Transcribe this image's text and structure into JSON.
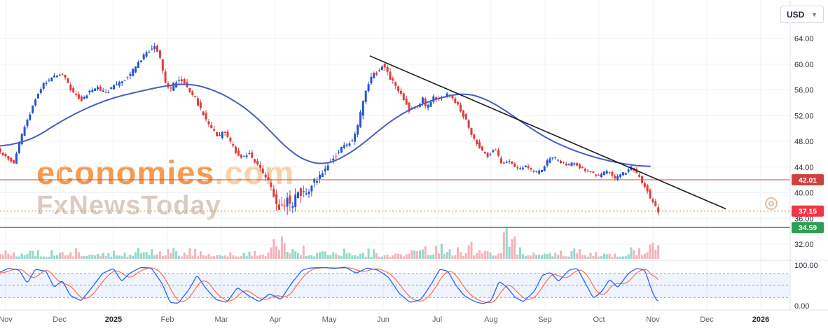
{
  "header": {
    "currency_button": {
      "label": "USD",
      "chevron_icon": "▼"
    }
  },
  "watermark": {
    "brand": "economies",
    "brand_suffix": ".com",
    "subbrand": "FxNewsToday"
  },
  "colors": {
    "candle_up": "#2356cf",
    "candle_down": "#e23b3b",
    "volume_up": "#93d8cb",
    "volume_down": "#f3b3ba",
    "ma_line": "#4b5cc4",
    "trend_line": "#1c1c1c",
    "stoch_k": "#2962ff",
    "stoch_d": "#ff7043",
    "band_fill": "rgba(33,102,245,0.08)",
    "band_line": "#7e97e6",
    "grid": "#eef0f3",
    "axis_border": "#dde0e6",
    "axis_text": "#2a2e39",
    "time_text": "#5d616b"
  },
  "levels": [
    {
      "label": "42.01",
      "price": 42.01,
      "line_color": "#cc4444",
      "bg": "#cf4040",
      "style": "solid",
      "width": 1
    },
    {
      "label": "37.15",
      "price": 37.15,
      "line_color": "#c8860a",
      "bg": "#f23645",
      "style": "dotted",
      "width": 1
    },
    {
      "label": "34.59",
      "price": 34.59,
      "line_color": "#2f9e55",
      "bg": "#2f9e55",
      "style": "solid",
      "width": 1.5
    }
  ],
  "price_axis": {
    "ticks": [
      "64.00",
      "60.00",
      "56.00",
      "52.00",
      "48.00",
      "44.00",
      "40.00",
      "36.00",
      "32.00"
    ],
    "tick_values": [
      64,
      60,
      56,
      52,
      48,
      44,
      40,
      36,
      32
    ]
  },
  "osc_axis": {
    "ticks": [
      "100.00",
      "0.00"
    ],
    "tick_values": [
      100,
      0
    ]
  },
  "time_axis": {
    "labels": [
      {
        "text": "Nov",
        "t": 0,
        "bold": false
      },
      {
        "text": "Dec",
        "t": 1,
        "bold": false
      },
      {
        "text": "2025",
        "t": 2,
        "bold": true
      },
      {
        "text": "Feb",
        "t": 3,
        "bold": false
      },
      {
        "text": "Mar",
        "t": 4,
        "bold": false
      },
      {
        "text": "Apr",
        "t": 5,
        "bold": false
      },
      {
        "text": "May",
        "t": 6,
        "bold": false
      },
      {
        "text": "Jun",
        "t": 7,
        "bold": false
      },
      {
        "text": "Jul",
        "t": 8,
        "bold": false
      },
      {
        "text": "Aug",
        "t": 9,
        "bold": false
      },
      {
        "text": "Sep",
        "t": 10,
        "bold": false
      },
      {
        "text": "Oct",
        "t": 11,
        "bold": false
      },
      {
        "text": "Nov",
        "t": 12,
        "bold": false
      },
      {
        "text": "Dec",
        "t": 13,
        "bold": false
      },
      {
        "text": "2026",
        "t": 14,
        "bold": true
      }
    ]
  },
  "chart_data": {
    "type": "candlestick",
    "currency": "USD",
    "x_range_months": [
      "Nov 2024",
      "Nov 2025"
    ],
    "price_range": [
      32,
      64
    ],
    "last_price": 37.15,
    "horizontal_levels": [
      42.01,
      37.15,
      34.59
    ],
    "candle_count": 245,
    "t_start": -0.15,
    "t_end": 12.15,
    "price_path": [
      [
        -0.15,
        47.2
      ],
      [
        0.0,
        46.0
      ],
      [
        0.2,
        44.6
      ],
      [
        0.35,
        49.0
      ],
      [
        0.55,
        53.5
      ],
      [
        0.75,
        57.0
      ],
      [
        0.95,
        58.0
      ],
      [
        1.1,
        58.6
      ],
      [
        1.25,
        56.2
      ],
      [
        1.45,
        54.3
      ],
      [
        1.6,
        55.8
      ],
      [
        1.75,
        56.3
      ],
      [
        1.9,
        55.4
      ],
      [
        2.05,
        56.6
      ],
      [
        2.2,
        57.4
      ],
      [
        2.35,
        58.2
      ],
      [
        2.5,
        60.3
      ],
      [
        2.65,
        61.6
      ],
      [
        2.8,
        63.0
      ],
      [
        2.9,
        61.5
      ],
      [
        3.0,
        57.6
      ],
      [
        3.1,
        55.9
      ],
      [
        3.25,
        57.9
      ],
      [
        3.4,
        56.6
      ],
      [
        3.55,
        54.8
      ],
      [
        3.7,
        52.4
      ],
      [
        3.85,
        50.2
      ],
      [
        4.0,
        48.6
      ],
      [
        4.1,
        49.6
      ],
      [
        4.25,
        47.4
      ],
      [
        4.4,
        45.2
      ],
      [
        4.55,
        46.2
      ],
      [
        4.7,
        44.6
      ],
      [
        4.85,
        42.4
      ],
      [
        4.95,
        41.6
      ],
      [
        5.05,
        39.2
      ],
      [
        5.15,
        36.9
      ],
      [
        5.25,
        39.2
      ],
      [
        5.35,
        37.8
      ],
      [
        5.45,
        40.2
      ],
      [
        5.6,
        39.8
      ],
      [
        5.75,
        41.6
      ],
      [
        5.9,
        43.0
      ],
      [
        6.05,
        44.6
      ],
      [
        6.2,
        46.2
      ],
      [
        6.35,
        47.4
      ],
      [
        6.5,
        48.2
      ],
      [
        6.6,
        51.0
      ],
      [
        6.7,
        55.2
      ],
      [
        6.8,
        57.6
      ],
      [
        6.95,
        59.0
      ],
      [
        7.05,
        60.2
      ],
      [
        7.15,
        58.4
      ],
      [
        7.3,
        56.0
      ],
      [
        7.45,
        54.4
      ],
      [
        7.55,
        52.6
      ],
      [
        7.7,
        53.6
      ],
      [
        7.78,
        54.6
      ],
      [
        7.85,
        53.0
      ],
      [
        8.0,
        55.0
      ],
      [
        8.1,
        54.4
      ],
      [
        8.25,
        55.6
      ],
      [
        8.4,
        54.0
      ],
      [
        8.55,
        51.8
      ],
      [
        8.7,
        49.0
      ],
      [
        8.85,
        46.8
      ],
      [
        9.0,
        45.6
      ],
      [
        9.1,
        47.0
      ],
      [
        9.25,
        44.6
      ],
      [
        9.4,
        44.9
      ],
      [
        9.55,
        43.6
      ],
      [
        9.7,
        44.3
      ],
      [
        9.85,
        43.0
      ],
      [
        10.0,
        43.6
      ],
      [
        10.15,
        45.6
      ],
      [
        10.3,
        45.0
      ],
      [
        10.45,
        44.2
      ],
      [
        10.6,
        44.7
      ],
      [
        10.75,
        43.6
      ],
      [
        10.9,
        43.2
      ],
      [
        11.05,
        42.6
      ],
      [
        11.2,
        43.4
      ],
      [
        11.35,
        42.2
      ],
      [
        11.5,
        43.0
      ],
      [
        11.65,
        43.9
      ],
      [
        11.78,
        42.6
      ],
      [
        11.88,
        41.4
      ],
      [
        11.98,
        39.6
      ],
      [
        12.08,
        38.0
      ],
      [
        12.15,
        37.15
      ]
    ],
    "ma_path": [
      [
        -0.15,
        47.0
      ],
      [
        0.5,
        48.3
      ],
      [
        1.0,
        51.0
      ],
      [
        1.5,
        53.2
      ],
      [
        2.0,
        54.8
      ],
      [
        2.5,
        55.8
      ],
      [
        3.0,
        56.7
      ],
      [
        3.4,
        57.0
      ],
      [
        3.8,
        56.2
      ],
      [
        4.2,
        54.6
      ],
      [
        4.6,
        52.2
      ],
      [
        5.0,
        48.8
      ],
      [
        5.3,
        46.2
      ],
      [
        5.6,
        44.8
      ],
      [
        5.9,
        44.3
      ],
      [
        6.2,
        45.2
      ],
      [
        6.6,
        47.4
      ],
      [
        7.0,
        50.3
      ],
      [
        7.4,
        52.6
      ],
      [
        7.8,
        54.1
      ],
      [
        8.2,
        55.1
      ],
      [
        8.5,
        55.5
      ],
      [
        8.8,
        55.0
      ],
      [
        9.2,
        53.2
      ],
      [
        9.6,
        50.8
      ],
      [
        10.0,
        48.6
      ],
      [
        10.4,
        47.0
      ],
      [
        10.8,
        45.8
      ],
      [
        11.2,
        44.9
      ],
      [
        11.6,
        44.3
      ],
      [
        11.95,
        44.0
      ]
    ],
    "ma_t_range": [
      -0.15,
      11.95
    ],
    "trendline": {
      "from": [
        6.75,
        61.3
      ],
      "to": [
        13.35,
        37.5
      ]
    },
    "volatility_path": [
      [
        -0.15,
        0.55
      ],
      [
        1.5,
        0.6
      ],
      [
        2.6,
        0.8
      ],
      [
        2.9,
        0.95
      ],
      [
        3.3,
        0.8
      ],
      [
        4.6,
        0.65
      ],
      [
        4.95,
        1.2
      ],
      [
        5.1,
        1.8
      ],
      [
        5.3,
        1.9
      ],
      [
        5.6,
        1.3
      ],
      [
        5.9,
        0.9
      ],
      [
        6.3,
        0.7
      ],
      [
        6.7,
        0.95
      ],
      [
        7.1,
        0.85
      ],
      [
        7.6,
        0.7
      ],
      [
        8.5,
        0.6
      ],
      [
        9.5,
        0.5
      ],
      [
        10.8,
        0.45
      ],
      [
        11.6,
        0.5
      ],
      [
        11.95,
        0.75
      ],
      [
        12.15,
        0.7
      ]
    ],
    "volume_profile": [
      [
        -0.15,
        1.0
      ],
      [
        4.8,
        1.1
      ],
      [
        5.0,
        2.8
      ],
      [
        5.15,
        3.6
      ],
      [
        5.3,
        2.0
      ],
      [
        5.5,
        1.3
      ],
      [
        5.9,
        1.0
      ],
      [
        7.6,
        0.9
      ],
      [
        7.72,
        3.8
      ],
      [
        7.85,
        1.3
      ],
      [
        9.1,
        1.4
      ],
      [
        9.28,
        3.0
      ],
      [
        9.45,
        1.5
      ],
      [
        9.8,
        1.0
      ],
      [
        11.6,
        1.0
      ],
      [
        11.9,
        2.0
      ],
      [
        12.05,
        2.4
      ],
      [
        12.15,
        2.2
      ]
    ],
    "stochastic": {
      "range": [
        0,
        100
      ],
      "bands": [
        80,
        50,
        20
      ],
      "d_lag_months": 0.12,
      "k_path": [
        [
          -0.15,
          80
        ],
        [
          0.05,
          92
        ],
        [
          0.25,
          88
        ],
        [
          0.4,
          55
        ],
        [
          0.55,
          90
        ],
        [
          0.75,
          85
        ],
        [
          0.9,
          45
        ],
        [
          1.05,
          62
        ],
        [
          1.2,
          25
        ],
        [
          1.4,
          12
        ],
        [
          1.6,
          45
        ],
        [
          1.8,
          80
        ],
        [
          2.0,
          92
        ],
        [
          2.15,
          60
        ],
        [
          2.3,
          80
        ],
        [
          2.5,
          94
        ],
        [
          2.7,
          93
        ],
        [
          2.9,
          55
        ],
        [
          3.05,
          8
        ],
        [
          3.2,
          6
        ],
        [
          3.4,
          40
        ],
        [
          3.55,
          75
        ],
        [
          3.7,
          45
        ],
        [
          3.9,
          15
        ],
        [
          4.1,
          8
        ],
        [
          4.3,
          45
        ],
        [
          4.5,
          25
        ],
        [
          4.7,
          10
        ],
        [
          4.9,
          30
        ],
        [
          5.1,
          15
        ],
        [
          5.3,
          55
        ],
        [
          5.5,
          88
        ],
        [
          5.65,
          93
        ],
        [
          5.9,
          94
        ],
        [
          6.1,
          92
        ],
        [
          6.3,
          95
        ],
        [
          6.5,
          80
        ],
        [
          6.7,
          93
        ],
        [
          6.9,
          88
        ],
        [
          7.1,
          70
        ],
        [
          7.3,
          30
        ],
        [
          7.5,
          8
        ],
        [
          7.7,
          15
        ],
        [
          7.9,
          55
        ],
        [
          8.05,
          90
        ],
        [
          8.2,
          85
        ],
        [
          8.35,
          50
        ],
        [
          8.5,
          25
        ],
        [
          8.7,
          10
        ],
        [
          8.85,
          5
        ],
        [
          9.0,
          12
        ],
        [
          9.15,
          60
        ],
        [
          9.3,
          45
        ],
        [
          9.45,
          20
        ],
        [
          9.6,
          10
        ],
        [
          9.8,
          35
        ],
        [
          9.95,
          75
        ],
        [
          10.1,
          82
        ],
        [
          10.25,
          60
        ],
        [
          10.45,
          88
        ],
        [
          10.6,
          92
        ],
        [
          10.75,
          55
        ],
        [
          10.9,
          18
        ],
        [
          11.05,
          35
        ],
        [
          11.2,
          65
        ],
        [
          11.35,
          45
        ],
        [
          11.55,
          80
        ],
        [
          11.7,
          92
        ],
        [
          11.85,
          88
        ],
        [
          12.0,
          30
        ],
        [
          12.1,
          8
        ]
      ]
    }
  }
}
